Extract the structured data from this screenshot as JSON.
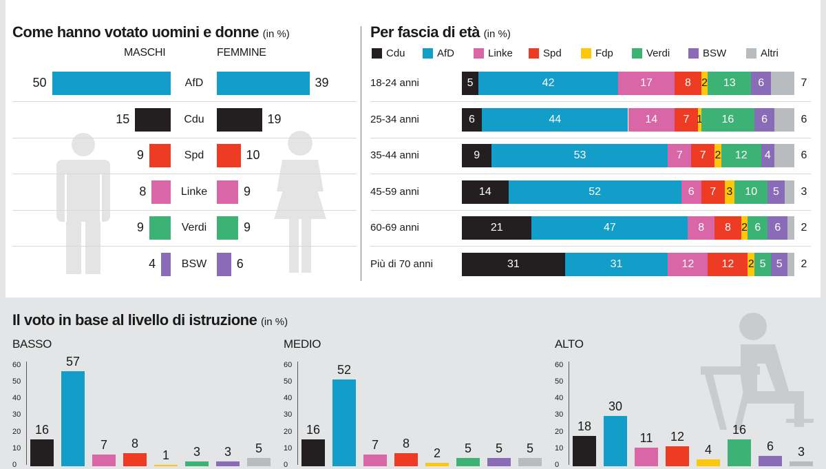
{
  "colors": {
    "Cdu": "#231f20",
    "AfD": "#139ec9",
    "Linke": "#d966a6",
    "Spd": "#ee3c24",
    "Fdp": "#fdc70c",
    "Verdi": "#3cb375",
    "BSW": "#8a6bb8",
    "Altri": "#b9bcbf"
  },
  "gender": {
    "title": "Come hanno votato uomini e donne",
    "unit": "(in %)",
    "male_label": "MASCHI",
    "female_label": "FEMMINE",
    "icons": [
      "man-icon",
      "woman-icon"
    ],
    "chart_data": {
      "type": "bar",
      "categories": [
        "AfD",
        "Cdu",
        "Spd",
        "Linke",
        "Verdi",
        "BSW"
      ],
      "series": [
        {
          "name": "MASCHI",
          "values": [
            50,
            15,
            9,
            8,
            9,
            4
          ]
        },
        {
          "name": "FEMMINE",
          "values": [
            39,
            19,
            10,
            9,
            9,
            6
          ]
        }
      ]
    }
  },
  "age": {
    "title": "Per fascia di età",
    "unit": "(in %)",
    "chart_data": {
      "type": "bar",
      "stacked": true,
      "legend": [
        "Cdu",
        "AfD",
        "Linke",
        "Spd",
        "Fdp",
        "Verdi",
        "BSW",
        "Altri"
      ],
      "categories": [
        "18-24 anni",
        "25-34 anni",
        "35-44 anni",
        "45-59 anni",
        "60-69 anni",
        "Più di 70 anni"
      ],
      "series": [
        {
          "name": "Cdu",
          "values": [
            5,
            6,
            9,
            14,
            21,
            31
          ]
        },
        {
          "name": "AfD",
          "values": [
            42,
            44,
            53,
            52,
            47,
            31
          ]
        },
        {
          "name": "Linke",
          "values": [
            17,
            14,
            7,
            6,
            8,
            12
          ]
        },
        {
          "name": "Spd",
          "values": [
            8,
            7,
            7,
            7,
            8,
            12
          ]
        },
        {
          "name": "Fdp",
          "values": [
            2,
            1,
            2,
            3,
            2,
            2
          ]
        },
        {
          "name": "Verdi",
          "values": [
            13,
            16,
            12,
            10,
            6,
            5
          ]
        },
        {
          "name": "BSW",
          "values": [
            6,
            6,
            4,
            5,
            6,
            5
          ]
        },
        {
          "name": "Altri",
          "values": [
            7,
            6,
            6,
            3,
            2,
            2
          ]
        }
      ]
    }
  },
  "education": {
    "title": "Il voto in base al livello di istruzione",
    "unit": "(in %)",
    "icon": "student-desk-icon",
    "chart_data": [
      {
        "type": "bar",
        "title": "BASSO",
        "categories": [
          "Cdu",
          "AfD",
          "Linke",
          "Spd",
          "Fdp",
          "Verdi",
          "BSW",
          "Altri"
        ],
        "values": [
          16,
          57,
          7,
          8,
          1,
          3,
          3,
          5
        ],
        "yticks": [
          0,
          10,
          20,
          30,
          40,
          50,
          60
        ]
      },
      {
        "type": "bar",
        "title": "MEDIO",
        "categories": [
          "Cdu",
          "AfD",
          "Linke",
          "Spd",
          "Fdp",
          "Verdi",
          "BSW",
          "Altri"
        ],
        "values": [
          16,
          52,
          7,
          8,
          2,
          5,
          5,
          5
        ],
        "yticks": [
          0,
          10,
          20,
          30,
          40,
          50,
          60
        ]
      },
      {
        "type": "bar",
        "title": "ALTO",
        "categories": [
          "Cdu",
          "AfD",
          "Linke",
          "Spd",
          "Fdp",
          "Verdi",
          "BSW",
          "Altri"
        ],
        "values": [
          18,
          30,
          11,
          12,
          4,
          16,
          6,
          3
        ],
        "yticks": [
          0,
          10,
          20,
          30,
          40,
          50,
          60
        ]
      }
    ]
  }
}
